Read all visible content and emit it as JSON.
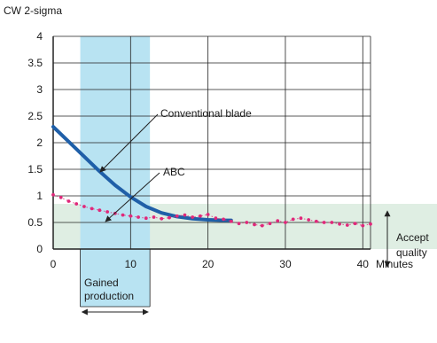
{
  "chart_data": {
    "type": "line",
    "ylabel": "CW 2-sigma",
    "xlabel": "Minutes",
    "xlim": [
      0,
      41
    ],
    "ylim": [
      0,
      4
    ],
    "x_ticks": [
      0,
      10,
      20,
      30,
      40
    ],
    "y_ticks": [
      0,
      0.5,
      1,
      1.5,
      2,
      2.5,
      3,
      3.5,
      4
    ],
    "y_tick_labels": [
      "0",
      "0.5",
      "1",
      "1.5",
      "2",
      "2.5",
      "3",
      "3.5",
      "4"
    ],
    "x_tick_labels": [
      "0",
      "10",
      "20",
      "30",
      "40"
    ],
    "grid": true,
    "series": [
      {
        "name": "Conventional blade",
        "style": "solid-line",
        "color": "#1f5fa8",
        "x": [
          0,
          2,
          4,
          6,
          8,
          10,
          12,
          14,
          16,
          18,
          20,
          22,
          23
        ],
        "y": [
          2.3,
          2.02,
          1.74,
          1.46,
          1.2,
          0.98,
          0.8,
          0.68,
          0.61,
          0.57,
          0.55,
          0.54,
          0.54
        ]
      },
      {
        "name": "ABC",
        "style": "dotted-markers",
        "color": "#e0287a",
        "x": [
          0,
          1,
          2,
          3,
          4,
          5,
          6,
          7,
          8,
          9,
          10,
          11,
          12,
          13,
          14,
          15,
          16,
          17,
          18,
          19,
          20,
          21,
          22,
          23,
          24,
          25,
          26,
          27,
          28,
          29,
          30,
          31,
          32,
          33,
          34,
          35,
          36,
          37,
          38,
          39,
          40,
          41
        ],
        "y": [
          1.02,
          0.97,
          0.9,
          0.85,
          0.8,
          0.76,
          0.73,
          0.7,
          0.67,
          0.64,
          0.62,
          0.6,
          0.58,
          0.6,
          0.57,
          0.59,
          0.62,
          0.64,
          0.6,
          0.62,
          0.65,
          0.58,
          0.56,
          0.52,
          0.48,
          0.5,
          0.46,
          0.44,
          0.48,
          0.53,
          0.5,
          0.56,
          0.58,
          0.55,
          0.52,
          0.5,
          0.5,
          0.47,
          0.45,
          0.48,
          0.44,
          0.47
        ]
      }
    ],
    "annotations": {
      "conventional_label": "Conventional blade",
      "abc_label": "ABC",
      "acceptable_quality": {
        "line1": "Accept",
        "line2": "quality",
        "y_range": [
          0,
          0.85
        ]
      },
      "gained_production": {
        "line1": "Gained",
        "line2": "production",
        "x_range": [
          3.5,
          12.5
        ]
      }
    },
    "colors": {
      "acceptable_band": "#dfeee3",
      "gained_band": "#b8e3f2",
      "grid": "#222222",
      "axis": "#222222"
    }
  }
}
